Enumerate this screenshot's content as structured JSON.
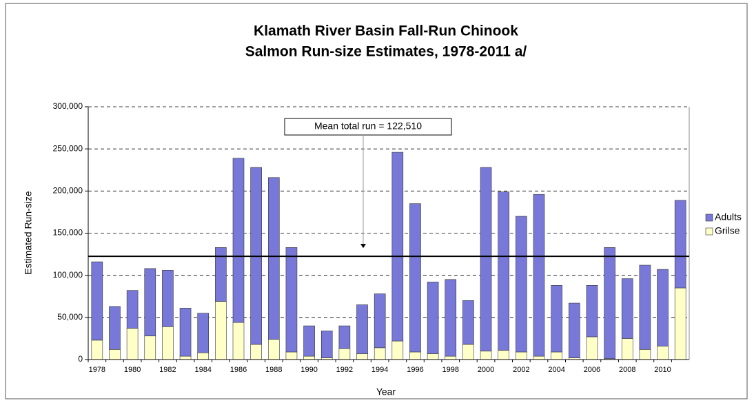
{
  "chart_data": {
    "type": "stacked_bar",
    "title": [
      "Klamath River Basin Fall-Run Chinook",
      "Salmon Run-size Estimates, 1978-2011 a/"
    ],
    "x_label": "Year",
    "y_label": "Estimated Run-size",
    "categories": [
      "1978",
      null,
      "1980",
      null,
      "1982",
      null,
      "1984",
      null,
      "1986",
      null,
      "1988",
      null,
      "1990",
      null,
      "1992",
      null,
      "1994",
      null,
      "1996",
      null,
      "1998",
      null,
      "2000",
      null,
      "2002",
      null,
      "2004",
      null,
      "2006",
      null,
      "2008",
      null,
      "2010",
      null
    ],
    "series": [
      {
        "name": "Adults",
        "color": "#7878d8",
        "values": [
          93000,
          51000,
          45000,
          80000,
          67000,
          57000,
          47000,
          64000,
          195000,
          210000,
          192000,
          124000,
          36000,
          32000,
          27000,
          58000,
          64000,
          224000,
          176000,
          85000,
          91000,
          52000,
          218000,
          188000,
          161000,
          192000,
          79000,
          65000,
          61000,
          132000,
          71000,
          100000,
          91000,
          104000
        ]
      },
      {
        "name": "Grilse",
        "color": "#ffffc8",
        "values": [
          23000,
          12000,
          37000,
          28000,
          39000,
          4000,
          8000,
          69000,
          44000,
          18000,
          24000,
          9000,
          4000,
          2000,
          13000,
          7000,
          14000,
          22000,
          9000,
          7000,
          4000,
          18000,
          10000,
          11000,
          9000,
          4000,
          9000,
          2000,
          27000,
          1000,
          25000,
          12000,
          16000,
          85000
        ]
      }
    ],
    "ylim": [
      0,
      300000
    ],
    "yticks": [
      0,
      {
        "value": 50000,
        "label": "50,000"
      },
      {
        "value": 100000,
        "label": "100,000"
      },
      {
        "value": 150000,
        "label": "150,000"
      },
      {
        "value": 200000,
        "label": "200,000"
      },
      {
        "value": 250000,
        "label": "250,000"
      },
      {
        "value": 300000,
        "label": "300,000"
      }
    ],
    "grid": true,
    "reference_line": 122510,
    "annotation": "Mean total run = 122,510",
    "legend": "right"
  }
}
